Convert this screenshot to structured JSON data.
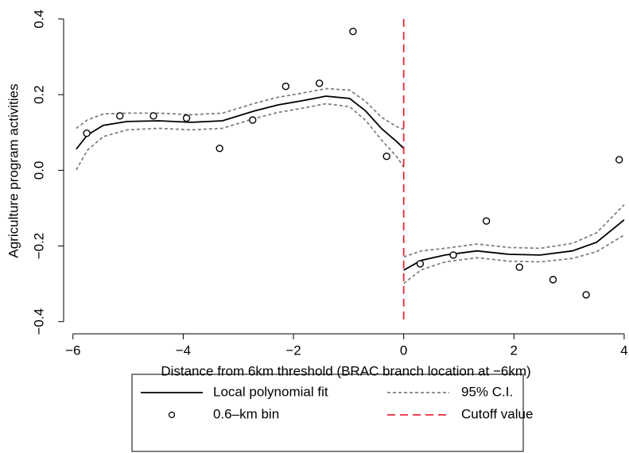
{
  "chart_data": {
    "type": "scatter",
    "x_label": "Distance from 6km threshold (BRAC branch location at −6km)",
    "y_label": "Agriculture program activities",
    "xlim": [
      -6.17,
      4.03
    ],
    "ylim": [
      -0.43,
      0.425
    ],
    "xticks": [
      {
        "value": -6,
        "label": "−6"
      },
      {
        "value": -4,
        "label": "−4"
      },
      {
        "value": -2,
        "label": "−2"
      },
      {
        "value": 0,
        "label": "0"
      },
      {
        "value": 2,
        "label": "2"
      },
      {
        "value": 4,
        "label": "4"
      }
    ],
    "yticks": [
      {
        "value": -0.4,
        "label": "−0.4"
      },
      {
        "value": -0.2,
        "label": "−0.2"
      },
      {
        "value": 0,
        "label": "0.0"
      },
      {
        "value": 0.2,
        "label": "0.2"
      },
      {
        "value": 0.4,
        "label": "0.4"
      }
    ],
    "fit": {
      "name": "Local polynomial fit",
      "color": "#000000",
      "x": [
        -5.94,
        -5.74,
        -5.45,
        -5.02,
        -4.44,
        -3.86,
        -3.29,
        -2.71,
        -2.28,
        -1.84,
        -1.41,
        -0.98,
        -0.69,
        -0.4,
        -0.12,
        0,
        0,
        0,
        0.32,
        0.75,
        1.33,
        1.91,
        2.48,
        3.06,
        3.5,
        4.0
      ],
      "values": [
        0.056,
        0.093,
        0.119,
        0.129,
        0.131,
        0.127,
        0.131,
        0.157,
        0.173,
        0.184,
        0.196,
        0.19,
        0.157,
        0.11,
        0.075,
        0.058,
        null,
        -0.264,
        -0.238,
        -0.224,
        -0.213,
        -0.222,
        -0.224,
        -0.213,
        -0.19,
        -0.131
      ]
    },
    "ci": {
      "name": "95% C.I.",
      "color": "#808080",
      "x": [
        -5.94,
        -5.74,
        -5.45,
        -5.02,
        -4.44,
        -3.86,
        -3.29,
        -2.71,
        -2.28,
        -1.84,
        -1.41,
        -0.98,
        -0.69,
        -0.4,
        -0.12,
        0,
        0,
        0,
        0.32,
        0.75,
        1.33,
        1.91,
        2.48,
        3.06,
        3.5,
        4.0
      ],
      "upper": [
        0.111,
        0.133,
        0.149,
        0.151,
        0.151,
        0.147,
        0.151,
        0.177,
        0.193,
        0.204,
        0.216,
        0.212,
        0.182,
        0.14,
        0.115,
        0.108,
        null,
        -0.229,
        -0.213,
        -0.206,
        -0.195,
        -0.204,
        -0.206,
        -0.193,
        -0.165,
        -0.091
      ],
      "lower": [
        0.001,
        0.053,
        0.089,
        0.107,
        0.111,
        0.107,
        0.111,
        0.137,
        0.153,
        0.164,
        0.176,
        0.168,
        0.132,
        0.08,
        0.035,
        0.008,
        null,
        -0.299,
        -0.263,
        -0.242,
        -0.231,
        -0.24,
        -0.242,
        -0.233,
        -0.215,
        -0.171
      ]
    },
    "bins": {
      "name": "0.6–km bin",
      "color": "#000000",
      "x": [
        -5.75,
        -5.15,
        -4.54,
        -3.94,
        -3.34,
        -2.74,
        -2.14,
        -1.53,
        -0.92,
        -0.31,
        0.3,
        0.9,
        1.5,
        2.1,
        2.71,
        3.31,
        3.91
      ],
      "values": [
        0.098,
        0.144,
        0.144,
        0.138,
        0.058,
        0.133,
        0.222,
        0.23,
        0.367,
        0.037,
        -0.247,
        -0.224,
        -0.134,
        -0.256,
        -0.289,
        -0.329,
        0.028
      ]
    },
    "cutoff": {
      "name": "Cutoff value",
      "value": 0,
      "color": "#e8283c"
    }
  }
}
